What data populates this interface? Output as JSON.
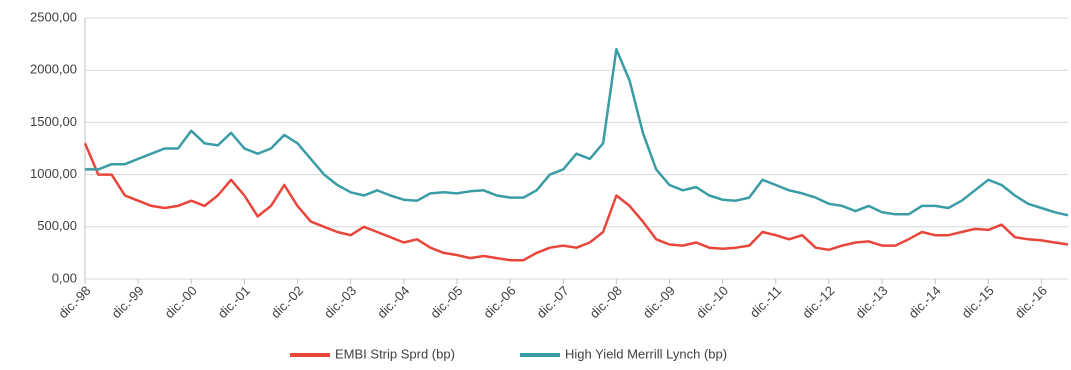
{
  "chart_data": {
    "type": "line",
    "categories": [
      "dic.-98",
      null,
      null,
      null,
      "dic.-99",
      null,
      null,
      null,
      "dic.-00",
      null,
      null,
      null,
      "dic.-01",
      null,
      null,
      null,
      "dic.-02",
      null,
      null,
      null,
      "dic.-03",
      null,
      null,
      null,
      "dic.-04",
      null,
      null,
      null,
      "dic.-05",
      null,
      null,
      null,
      "dic.-06",
      null,
      null,
      null,
      "dic.-07",
      null,
      null,
      null,
      "dic.-08",
      null,
      null,
      null,
      "dic.-09",
      null,
      null,
      null,
      "dic.-10",
      null,
      null,
      null,
      "dic.-11",
      null,
      null,
      null,
      "dic.-12",
      null,
      null,
      null,
      "dic.-13",
      null,
      null,
      null,
      "dic.-14",
      null,
      null,
      null,
      "dic.-15",
      null,
      null,
      null,
      "dic.-16",
      null,
      null
    ],
    "series": [
      {
        "name": "EMBI Strip Sprd (bp)",
        "color": "#e8463a",
        "values": [
          1300,
          1000,
          1000,
          800,
          750,
          700,
          680,
          700,
          750,
          700,
          800,
          950,
          800,
          600,
          700,
          900,
          700,
          550,
          500,
          450,
          420,
          500,
          450,
          400,
          350,
          380,
          300,
          250,
          230,
          200,
          220,
          200,
          180,
          180,
          250,
          300,
          320,
          300,
          350,
          450,
          800,
          700,
          550,
          380,
          330,
          320,
          350,
          300,
          290,
          300,
          320,
          450,
          420,
          380,
          420,
          300,
          280,
          320,
          350,
          360,
          320,
          320,
          380,
          450,
          420,
          420,
          450,
          480,
          470,
          520,
          400,
          380,
          370,
          350,
          330
        ]
      },
      {
        "name": "High Yield Merrill Lynch (bp)",
        "color": "#3a9ca6",
        "values": [
          1050,
          1050,
          1100,
          1100,
          1150,
          1200,
          1250,
          1250,
          1420,
          1300,
          1280,
          1400,
          1250,
          1200,
          1250,
          1380,
          1300,
          1150,
          1000,
          900,
          830,
          800,
          850,
          800,
          760,
          750,
          820,
          830,
          820,
          840,
          850,
          800,
          780,
          780,
          850,
          1000,
          1050,
          1200,
          1150,
          1300,
          2200,
          1900,
          1400,
          1050,
          900,
          850,
          880,
          800,
          760,
          750,
          780,
          950,
          900,
          850,
          820,
          780,
          720,
          700,
          650,
          700,
          640,
          620,
          620,
          700,
          700,
          680,
          750,
          850,
          950,
          900,
          800,
          720,
          680,
          640,
          610
        ]
      }
    ],
    "ylim": [
      0,
      2500
    ],
    "yticks": [
      {
        "value": 0,
        "label": "0,00"
      },
      {
        "value": 500,
        "label": "500,00"
      },
      {
        "value": 1000,
        "label": "1000,00"
      },
      {
        "value": 1500,
        "label": "1500,00"
      },
      {
        "value": 2000,
        "label": "2000,00"
      },
      {
        "value": 2500,
        "label": "2500,00"
      }
    ],
    "grid": true
  }
}
